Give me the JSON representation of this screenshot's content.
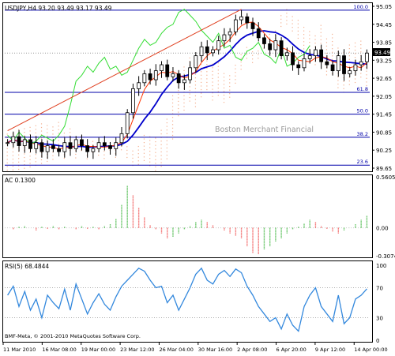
{
  "main_panel": {
    "header": "USDJPY,H4  93.20 93.49 93.17 93.49",
    "current_price_tag": "93.49",
    "watermark": "Boston Merchant Financial",
    "fib_labels": [
      "100.0",
      "61.8",
      "50.0",
      "38.2",
      "23.6"
    ]
  },
  "ac_panel": {
    "header": "AC 0.1300"
  },
  "rsi_panel": {
    "header": "RSI(5) 68.4844"
  },
  "footer": {
    "copyright": "BMF-Meta, © 2001-2010 MetaQuotes Software Corp."
  },
  "colors": {
    "candles": "#000000",
    "ma_slow": "#0000cc",
    "ma_fast": "#ff3300",
    "chikou": "#33dd33",
    "cloud": "#f4b090",
    "trendline": "#e04020",
    "fib_lines": "#0000aa",
    "ac_up": "#22aa22",
    "ac_down": "#ee3333",
    "rsi": "#3388dd"
  },
  "chart_data": [
    {
      "type": "candlestick",
      "symbol": "USDJPY",
      "timeframe": "H4",
      "last_bar": {
        "open": 93.2,
        "high": 93.49,
        "low": 93.17,
        "close": 93.49
      },
      "ylim": [
        89.65,
        95.05
      ],
      "y_ticks": [
        "95.05",
        "94.45",
        "93.85",
        "93.25",
        "92.65",
        "92.05",
        "91.45",
        "90.85",
        "90.25",
        "89.65"
      ],
      "x_ticks": [
        "11 Mar 2010",
        "16 Mar 08:00",
        "19 Mar 00:00",
        "23 Mar 12:00",
        "26 Mar 04:00",
        "30 Mar 16:00",
        "2 Apr 08:00",
        "6 Apr 20:00",
        "9 Apr 12:00",
        "14 Apr 00:00"
      ],
      "close_path": [
        90.5,
        90.7,
        90.4,
        90.6,
        90.3,
        90.5,
        90.2,
        90.4,
        90.3,
        90.2,
        90.5,
        90.3,
        90.6,
        90.4,
        90.2,
        90.3,
        90.5,
        90.4,
        90.3,
        90.5,
        90.8,
        91.5,
        92.3,
        92.5,
        92.8,
        92.6,
        92.9,
        93.1,
        92.7,
        92.8,
        92.5,
        92.6,
        93.0,
        93.4,
        93.7,
        93.5,
        93.6,
        93.9,
        94.1,
        94.2,
        94.6,
        94.7,
        94.5,
        94.3,
        94.0,
        93.8,
        93.6,
        93.9,
        93.4,
        93.5,
        93.1,
        93.0,
        93.3,
        93.4,
        93.6,
        93.2,
        93.1,
        92.9,
        93.4,
        92.8,
        92.9,
        93.1,
        93.2,
        93.49
      ],
      "fibonacci": [
        {
          "label": "100.0",
          "value": 94.92
        },
        {
          "label": "61.8",
          "value": 92.18
        },
        {
          "label": "50.0",
          "value": 91.45
        },
        {
          "label": "38.2",
          "value": 90.68
        },
        {
          "label": "23.6",
          "value": 89.75
        }
      ]
    },
    {
      "type": "bar",
      "indicator": "AC",
      "value": 0.13,
      "ylim": [
        -0.3074,
        0.5605
      ],
      "y_ticks": [
        "0.5605",
        "0.00",
        "-0.3074"
      ],
      "values": [
        0.0,
        -0.02,
        0.01,
        0.02,
        0.0,
        -0.03,
        0.01,
        -0.01,
        0.02,
        -0.02,
        0.01,
        0.0,
        -0.02,
        0.02,
        -0.01,
        0.01,
        -0.02,
        0.02,
        0.04,
        0.1,
        0.25,
        0.46,
        0.36,
        0.22,
        0.12,
        0.03,
        -0.02,
        -0.06,
        -0.12,
        -0.1,
        -0.06,
        -0.02,
        0.02,
        0.06,
        0.09,
        0.06,
        0.03,
        0.0,
        -0.03,
        -0.06,
        -0.09,
        -0.12,
        -0.2,
        -0.28,
        -0.29,
        -0.24,
        -0.2,
        -0.15,
        -0.12,
        -0.06,
        -0.02,
        0.01,
        0.05,
        0.09,
        0.06,
        0.02,
        -0.01,
        -0.04,
        -0.06,
        -0.03,
        0.0,
        0.04,
        0.09,
        0.13
      ]
    },
    {
      "type": "line",
      "indicator": "RSI(5)",
      "value": 68.4844,
      "ylim": [
        0,
        100
      ],
      "y_ticks": [
        "100",
        "70",
        "30",
        "0"
      ],
      "values": [
        60,
        72,
        45,
        65,
        40,
        55,
        30,
        60,
        50,
        42,
        68,
        40,
        75,
        55,
        35,
        50,
        62,
        48,
        40,
        58,
        72,
        80,
        88,
        96,
        92,
        80,
        70,
        72,
        50,
        60,
        40,
        55,
        70,
        88,
        96,
        80,
        75,
        88,
        93,
        85,
        95,
        90,
        72,
        60,
        45,
        35,
        25,
        30,
        15,
        35,
        20,
        12,
        45,
        60,
        70,
        45,
        35,
        25,
        60,
        22,
        30,
        55,
        60,
        68.48
      ]
    }
  ]
}
